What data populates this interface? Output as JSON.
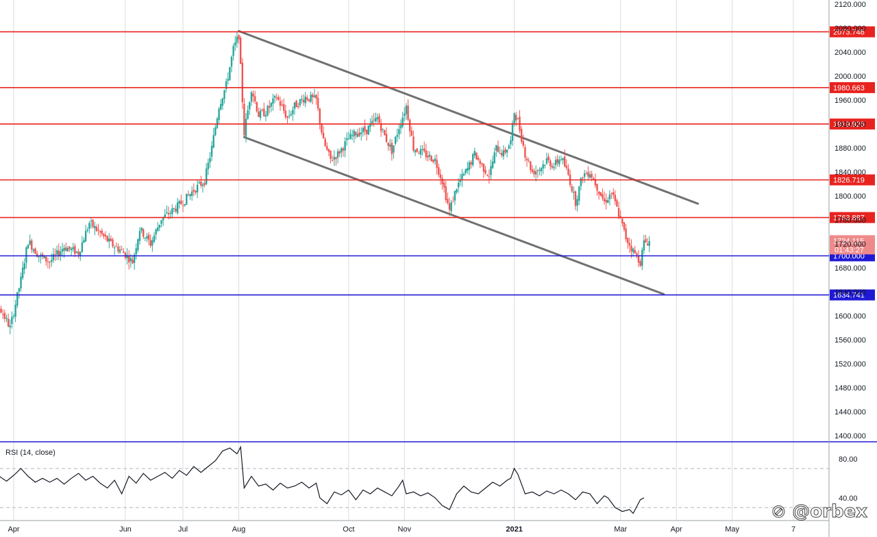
{
  "chart_data": {
    "type": "candlestick",
    "symbol_time_text": "",
    "price_axis": {
      "ylim": [
        1390,
        2130
      ],
      "ticks": [
        2120,
        2080,
        2040,
        2000,
        1960,
        1920,
        1880,
        1840,
        1800,
        1760,
        1720,
        1680,
        1640,
        1600,
        1560,
        1520,
        1480,
        1440,
        1400
      ],
      "tick_labels": [
        "2120.000",
        "2080.000",
        "2040.000",
        "2000.000",
        "1960.000",
        "1920.000",
        "1880.000",
        "1840.000",
        "1800.000",
        "1760.000",
        "1720.000",
        "1680.000",
        "1640.000",
        "1600.000",
        "1560.000",
        "1520.000",
        "1480.000",
        "1440.000",
        "1400.000"
      ]
    },
    "time_axis": {
      "labels": [
        "Apr",
        "Jun",
        "Jul",
        "Aug",
        "Oct",
        "Nov",
        "2021",
        "Mar",
        "Apr",
        "May",
        "7"
      ],
      "bold_labels": [
        "2021"
      ],
      "label_day_index": [
        20,
        82,
        114,
        145,
        206,
        237,
        298,
        357,
        388,
        419,
        453
      ]
    },
    "horizontal_levels": [
      {
        "value": 2073.748,
        "label": "2073.748",
        "color": "#e8231f",
        "tag_color": "#e8231f"
      },
      {
        "value": 1980.663,
        "label": "1980.663",
        "color": "#e8231f",
        "tag_color": "#e8231f"
      },
      {
        "value": 1919.926,
        "label": "1919.926",
        "color": "#e8231f",
        "tag_color": "#e8231f"
      },
      {
        "value": 1826.719,
        "label": "1826.719",
        "color": "#e8231f",
        "tag_color": "#e8231f"
      },
      {
        "value": 1763.887,
        "label": "1763.887",
        "color": "#e8231f",
        "tag_color": "#e8231f"
      },
      {
        "value": 1700.0,
        "label": "1700.000",
        "color": "#1f19d6",
        "tag_color": "#1f19d6"
      },
      {
        "value": 1634.741,
        "label": "1634.741",
        "color": "#1f19d6",
        "tag_color": "#1f19d6"
      }
    ],
    "current_price": {
      "value": 1724.115,
      "label": "1724.115",
      "countdown": "01:43:27",
      "tag_color": "#ef8a8a"
    },
    "trend_channel": {
      "color": "#707070",
      "upper": {
        "from": {
          "day": 145,
          "price": 2075
        },
        "to": {
          "day": 400,
          "price": 1787
        }
      },
      "lower": {
        "from": {
          "day": 148,
          "price": 1898
        },
        "to": {
          "day": 381,
          "price": 1636
        }
      }
    },
    "candle_colors": {
      "up": "#26a69a",
      "down": "#ef5350"
    },
    "price_path": [
      [
        0,
        1505
      ],
      [
        4,
        1462
      ],
      [
        8,
        1540
      ],
      [
        12,
        1615
      ],
      [
        18,
        1580
      ],
      [
        24,
        1660
      ],
      [
        28,
        1725
      ],
      [
        34,
        1700
      ],
      [
        40,
        1690
      ],
      [
        48,
        1715
      ],
      [
        56,
        1705
      ],
      [
        62,
        1755
      ],
      [
        68,
        1738
      ],
      [
        74,
        1720
      ],
      [
        80,
        1708
      ],
      [
        86,
        1690
      ],
      [
        90,
        1745
      ],
      [
        96,
        1720
      ],
      [
        102,
        1762
      ],
      [
        108,
        1775
      ],
      [
        114,
        1790
      ],
      [
        120,
        1810
      ],
      [
        126,
        1825
      ],
      [
        130,
        1880
      ],
      [
        134,
        1950
      ],
      [
        138,
        1985
      ],
      [
        142,
        2045
      ],
      [
        145,
        2068
      ],
      [
        148,
        1905
      ],
      [
        152,
        1980
      ],
      [
        156,
        1935
      ],
      [
        160,
        1940
      ],
      [
        166,
        1965
      ],
      [
        172,
        1930
      ],
      [
        176,
        1950
      ],
      [
        182,
        1965
      ],
      [
        188,
        1960
      ],
      [
        192,
        1890
      ],
      [
        196,
        1860
      ],
      [
        200,
        1870
      ],
      [
        206,
        1895
      ],
      [
        210,
        1905
      ],
      [
        216,
        1910
      ],
      [
        222,
        1930
      ],
      [
        226,
        1900
      ],
      [
        230,
        1875
      ],
      [
        234,
        1915
      ],
      [
        238,
        1950
      ],
      [
        242,
        1880
      ],
      [
        248,
        1870
      ],
      [
        254,
        1860
      ],
      [
        258,
        1825
      ],
      [
        262,
        1775
      ],
      [
        266,
        1815
      ],
      [
        272,
        1845
      ],
      [
        276,
        1870
      ],
      [
        280,
        1850
      ],
      [
        284,
        1835
      ],
      [
        288,
        1880
      ],
      [
        292,
        1870
      ],
      [
        296,
        1890
      ],
      [
        298,
        1940
      ],
      [
        300,
        1925
      ],
      [
        304,
        1870
      ],
      [
        308,
        1840
      ],
      [
        312,
        1845
      ],
      [
        316,
        1860
      ],
      [
        320,
        1850
      ],
      [
        324,
        1865
      ],
      [
        328,
        1835
      ],
      [
        332,
        1790
      ],
      [
        336,
        1835
      ],
      [
        340,
        1840
      ],
      [
        344,
        1815
      ],
      [
        348,
        1790
      ],
      [
        352,
        1805
      ],
      [
        356,
        1770
      ],
      [
        360,
        1730
      ],
      [
        364,
        1708
      ],
      [
        368,
        1690
      ],
      [
        370,
        1722
      ],
      [
        373,
        1724
      ]
    ],
    "rsi": {
      "title": "RSI (14, close)",
      "ylim": [
        0,
        100
      ],
      "ticks": [
        80,
        40
      ],
      "tick_labels": [
        "80.00",
        "40.00"
      ],
      "bands": [
        70,
        30
      ],
      "line_color": "#131722",
      "path": [
        [
          0,
          32
        ],
        [
          4,
          38
        ],
        [
          8,
          52
        ],
        [
          12,
          62
        ],
        [
          16,
          57
        ],
        [
          20,
          63
        ],
        [
          24,
          70
        ],
        [
          28,
          62
        ],
        [
          32,
          56
        ],
        [
          36,
          60
        ],
        [
          40,
          56
        ],
        [
          44,
          60
        ],
        [
          48,
          54
        ],
        [
          52,
          60
        ],
        [
          56,
          65
        ],
        [
          60,
          58
        ],
        [
          64,
          62
        ],
        [
          68,
          55
        ],
        [
          72,
          50
        ],
        [
          76,
          58
        ],
        [
          80,
          44
        ],
        [
          84,
          62
        ],
        [
          88,
          55
        ],
        [
          92,
          65
        ],
        [
          96,
          58
        ],
        [
          100,
          62
        ],
        [
          104,
          66
        ],
        [
          108,
          60
        ],
        [
          112,
          68
        ],
        [
          116,
          63
        ],
        [
          120,
          72
        ],
        [
          124,
          66
        ],
        [
          128,
          72
        ],
        [
          132,
          78
        ],
        [
          136,
          88
        ],
        [
          140,
          91
        ],
        [
          144,
          85
        ],
        [
          146,
          92
        ],
        [
          148,
          50
        ],
        [
          152,
          62
        ],
        [
          156,
          52
        ],
        [
          160,
          54
        ],
        [
          164,
          48
        ],
        [
          168,
          55
        ],
        [
          172,
          50
        ],
        [
          176,
          52
        ],
        [
          180,
          56
        ],
        [
          184,
          50
        ],
        [
          188,
          55
        ],
        [
          190,
          40
        ],
        [
          194,
          34
        ],
        [
          198,
          46
        ],
        [
          202,
          43
        ],
        [
          206,
          48
        ],
        [
          210,
          38
        ],
        [
          214,
          48
        ],
        [
          218,
          44
        ],
        [
          222,
          50
        ],
        [
          226,
          46
        ],
        [
          230,
          42
        ],
        [
          234,
          52
        ],
        [
          236,
          58
        ],
        [
          238,
          44
        ],
        [
          242,
          46
        ],
        [
          246,
          42
        ],
        [
          250,
          45
        ],
        [
          254,
          40
        ],
        [
          258,
          32
        ],
        [
          262,
          28
        ],
        [
          266,
          44
        ],
        [
          270,
          52
        ],
        [
          274,
          46
        ],
        [
          278,
          44
        ],
        [
          282,
          50
        ],
        [
          286,
          56
        ],
        [
          290,
          52
        ],
        [
          294,
          58
        ],
        [
          296,
          60
        ],
        [
          298,
          70
        ],
        [
          300,
          64
        ],
        [
          304,
          44
        ],
        [
          308,
          46
        ],
        [
          312,
          42
        ],
        [
          316,
          47
        ],
        [
          320,
          44
        ],
        [
          324,
          48
        ],
        [
          328,
          44
        ],
        [
          332,
          38
        ],
        [
          336,
          46
        ],
        [
          340,
          44
        ],
        [
          344,
          34
        ],
        [
          348,
          42
        ],
        [
          350,
          40
        ],
        [
          354,
          30
        ],
        [
          358,
          26
        ],
        [
          362,
          28
        ],
        [
          364,
          24
        ],
        [
          366,
          31
        ],
        [
          368,
          38
        ],
        [
          370,
          40
        ]
      ]
    }
  },
  "watermark": {
    "text": "@orbex",
    "icon": "orbex-logo-icon"
  }
}
